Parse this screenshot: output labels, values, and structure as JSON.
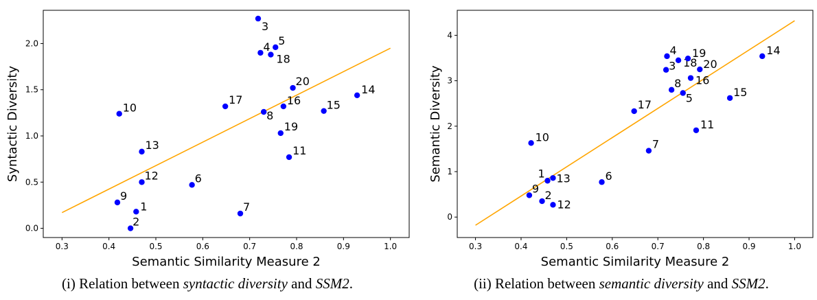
{
  "figures": [
    {
      "caption": {
        "prefix": "(i) Relation between ",
        "em1": "syntactic diversity",
        "mid": " and ",
        "em2": "SSM2",
        "suffix": "."
      }
    },
    {
      "caption": {
        "prefix": "(ii) Relation between ",
        "em1": "semantic diversity",
        "mid": " and ",
        "em2": "SSM2",
        "suffix": "."
      }
    }
  ],
  "chart_data": [
    {
      "type": "scatter",
      "title": "",
      "xlabel": "Semantic Similarity Measure 2",
      "ylabel": "Syntactic Diversity",
      "xlim": [
        0.26,
        1.04
      ],
      "ylim": [
        -0.1,
        2.36
      ],
      "xticks": [
        "0.3",
        "0.4",
        "0.5",
        "0.6",
        "0.7",
        "0.8",
        "0.9",
        "1.0"
      ],
      "yticks": [
        "0.0",
        "0.5",
        "1.0",
        "1.5",
        "2.0"
      ],
      "grid": false,
      "point_color": "#0000ff",
      "line_color": "#ffa500",
      "points": [
        {
          "label": "1",
          "x": 0.458,
          "y": 0.18
        },
        {
          "label": "2",
          "x": 0.446,
          "y": 0.0
        },
        {
          "label": "3",
          "x": 0.718,
          "y": 2.27
        },
        {
          "label": "4",
          "x": 0.723,
          "y": 1.9
        },
        {
          "label": "5",
          "x": 0.755,
          "y": 1.96
        },
        {
          "label": "6",
          "x": 0.577,
          "y": 0.47
        },
        {
          "label": "7",
          "x": 0.68,
          "y": 0.16
        },
        {
          "label": "8",
          "x": 0.73,
          "y": 1.26
        },
        {
          "label": "9",
          "x": 0.418,
          "y": 0.28
        },
        {
          "label": "10",
          "x": 0.422,
          "y": 1.24
        },
        {
          "label": "11",
          "x": 0.784,
          "y": 0.77
        },
        {
          "label": "12",
          "x": 0.47,
          "y": 0.5
        },
        {
          "label": "13",
          "x": 0.47,
          "y": 0.83
        },
        {
          "label": "14",
          "x": 0.929,
          "y": 1.44
        },
        {
          "label": "15",
          "x": 0.858,
          "y": 1.27
        },
        {
          "label": "16",
          "x": 0.772,
          "y": 1.32
        },
        {
          "label": "17",
          "x": 0.648,
          "y": 1.32
        },
        {
          "label": "18",
          "x": 0.745,
          "y": 1.88
        },
        {
          "label": "19",
          "x": 0.766,
          "y": 1.03
        },
        {
          "label": "20",
          "x": 0.792,
          "y": 1.52
        }
      ],
      "trendline": {
        "x": [
          0.3,
          1.0
        ],
        "y": [
          0.17,
          1.95
        ]
      }
    },
    {
      "type": "scatter",
      "title": "",
      "xlabel": "Semantic Similarity Measure 2",
      "ylabel": "Semantic Diversity",
      "xlim": [
        0.26,
        1.04
      ],
      "ylim": [
        -0.45,
        4.55
      ],
      "xticks": [
        "0.3",
        "0.4",
        "0.5",
        "0.6",
        "0.7",
        "0.8",
        "0.9",
        "1.0"
      ],
      "yticks": [
        "0",
        "1",
        "2",
        "3",
        "4"
      ],
      "grid": false,
      "point_color": "#0000ff",
      "line_color": "#ffa500",
      "points": [
        {
          "label": "1",
          "x": 0.458,
          "y": 0.8
        },
        {
          "label": "2",
          "x": 0.446,
          "y": 0.35
        },
        {
          "label": "3",
          "x": 0.718,
          "y": 3.24
        },
        {
          "label": "4",
          "x": 0.72,
          "y": 3.54
        },
        {
          "label": "5",
          "x": 0.755,
          "y": 2.73
        },
        {
          "label": "6",
          "x": 0.577,
          "y": 0.77
        },
        {
          "label": "7",
          "x": 0.68,
          "y": 1.46
        },
        {
          "label": "8",
          "x": 0.73,
          "y": 2.8
        },
        {
          "label": "9",
          "x": 0.418,
          "y": 0.48
        },
        {
          "label": "10",
          "x": 0.422,
          "y": 1.63
        },
        {
          "label": "11",
          "x": 0.784,
          "y": 1.91
        },
        {
          "label": "12",
          "x": 0.47,
          "y": 0.27
        },
        {
          "label": "13",
          "x": 0.47,
          "y": 0.86
        },
        {
          "label": "14",
          "x": 0.929,
          "y": 3.54
        },
        {
          "label": "15",
          "x": 0.858,
          "y": 2.62
        },
        {
          "label": "16",
          "x": 0.772,
          "y": 3.06
        },
        {
          "label": "17",
          "x": 0.648,
          "y": 2.33
        },
        {
          "label": "18",
          "x": 0.745,
          "y": 3.45
        },
        {
          "label": "19",
          "x": 0.766,
          "y": 3.49
        },
        {
          "label": "20",
          "x": 0.792,
          "y": 3.25
        }
      ],
      "trendline": {
        "x": [
          0.3,
          1.0
        ],
        "y": [
          -0.18,
          4.32
        ]
      }
    }
  ]
}
